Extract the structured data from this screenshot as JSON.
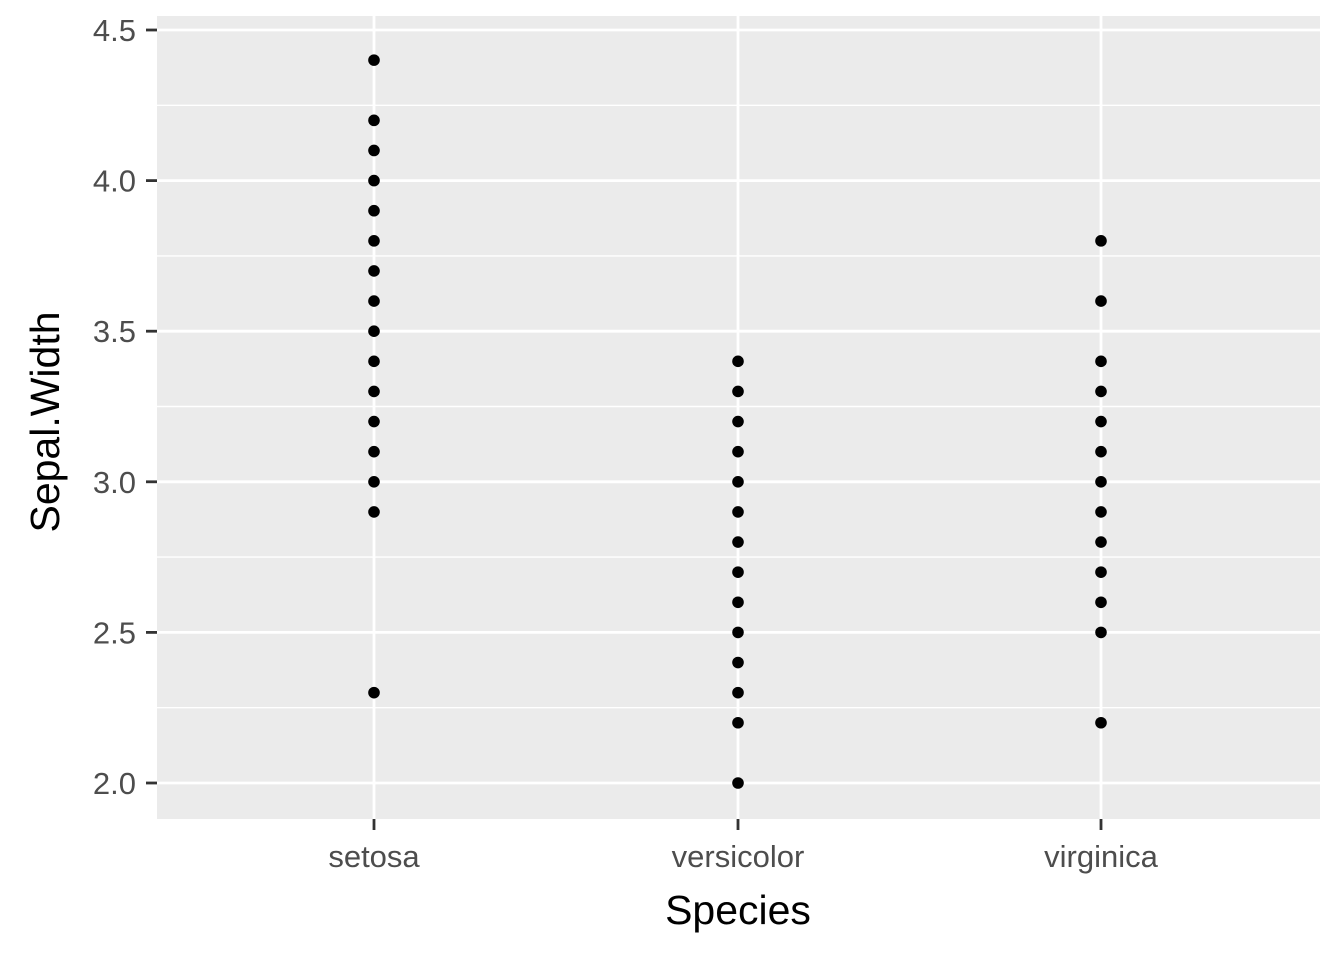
{
  "chart_data": {
    "type": "scatter",
    "title": "",
    "xlabel": "Species",
    "ylabel": "Sepal.Width",
    "categories": [
      "setosa",
      "versicolor",
      "virginica"
    ],
    "ylim": [
      1.88,
      4.5
    ],
    "y_ticks": [
      "2.0",
      "2.5",
      "3.0",
      "3.5",
      "4.0",
      "4.5"
    ],
    "grid": true,
    "legend": "none",
    "colors": {
      "panel": "#ebebeb",
      "grid": "#ffffff",
      "point": "#000000",
      "tick": "#333333"
    },
    "series": [
      {
        "category": "setosa",
        "values": [
          4.4,
          4.2,
          4.1,
          4.0,
          3.9,
          3.8,
          3.7,
          3.6,
          3.5,
          3.4,
          3.3,
          3.2,
          3.1,
          3.0,
          2.9,
          2.3
        ]
      },
      {
        "category": "versicolor",
        "values": [
          3.4,
          3.3,
          3.2,
          3.1,
          3.0,
          2.9,
          2.8,
          2.7,
          2.6,
          2.5,
          2.4,
          2.3,
          2.2,
          2.0
        ]
      },
      {
        "category": "virginica",
        "values": [
          3.8,
          3.6,
          3.4,
          3.3,
          3.2,
          3.1,
          3.0,
          2.9,
          2.8,
          2.7,
          2.6,
          2.5,
          2.2
        ]
      }
    ]
  }
}
